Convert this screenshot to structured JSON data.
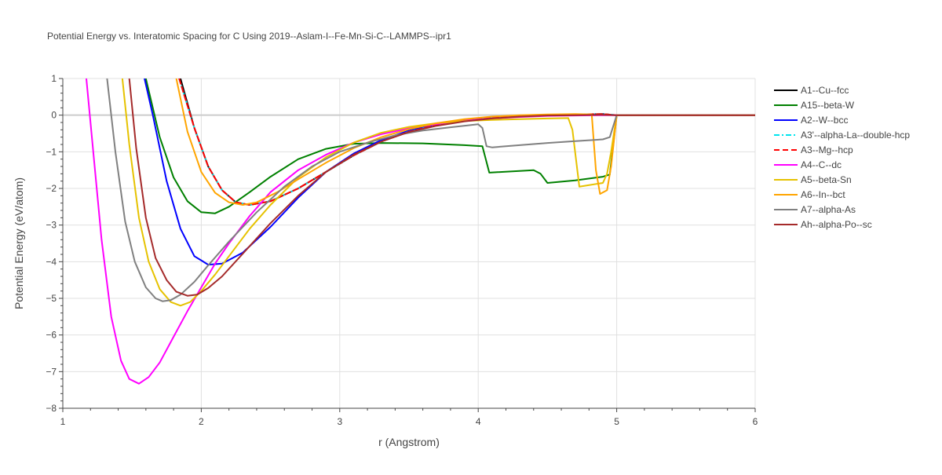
{
  "chart_data": {
    "type": "line",
    "title": "Potential Energy vs. Interatomic Spacing for C Using 2019--Aslam-I--Fe-Mn-Si-C--LAMMPS--ipr1",
    "xlabel": "r (Angstrom)",
    "ylabel": "Potential Energy (eV/atom)",
    "xlim": [
      1,
      6
    ],
    "ylim": [
      -8,
      1
    ],
    "xticks": [
      1,
      2,
      3,
      4,
      5,
      6
    ],
    "yticks": [
      1,
      0,
      -1,
      -2,
      -3,
      -4,
      -5,
      -6,
      -7,
      -8
    ],
    "grid": true,
    "legend_position": "right",
    "series": [
      {
        "name": "A1--Cu--fcc",
        "color": "#000000",
        "dash": "solid",
        "x": [
          1.85,
          1.95,
          2.05,
          2.15,
          2.25,
          2.35,
          2.5,
          2.7,
          2.9,
          3.1,
          3.3,
          3.5,
          3.7,
          3.9,
          4.1,
          4.3,
          4.5,
          4.7,
          4.9,
          5.0,
          6.0
        ],
        "y": [
          1.0,
          -0.35,
          -1.4,
          -2.05,
          -2.38,
          -2.45,
          -2.35,
          -2.0,
          -1.55,
          -1.1,
          -0.72,
          -0.45,
          -0.27,
          -0.14,
          -0.06,
          -0.02,
          0.0,
          0.02,
          0.03,
          0.0,
          0.0
        ]
      },
      {
        "name": "A15--beta-W",
        "color": "#008000",
        "dash": "solid",
        "x": [
          1.6,
          1.7,
          1.8,
          1.9,
          2.0,
          2.1,
          2.2,
          2.35,
          2.5,
          2.7,
          2.9,
          3.1,
          3.3,
          3.6,
          3.9,
          4.03,
          4.08,
          4.4,
          4.45,
          4.5,
          4.7,
          4.9,
          4.95,
          5.0,
          6.0
        ],
        "y": [
          1.0,
          -0.6,
          -1.7,
          -2.35,
          -2.65,
          -2.68,
          -2.5,
          -2.1,
          -1.68,
          -1.2,
          -0.92,
          -0.78,
          -0.76,
          -0.77,
          -0.82,
          -0.85,
          -1.57,
          -1.5,
          -1.6,
          -1.85,
          -1.78,
          -1.68,
          -1.62,
          0.0,
          0.0
        ]
      },
      {
        "name": "A2--W--bcc",
        "color": "#0000ff",
        "dash": "solid",
        "x": [
          1.59,
          1.65,
          1.75,
          1.85,
          1.95,
          2.05,
          2.15,
          2.3,
          2.5,
          2.7,
          2.9,
          3.1,
          3.3,
          3.5,
          3.7,
          3.9,
          4.1,
          4.3,
          4.5,
          4.7,
          4.9,
          5.0,
          6.0
        ],
        "y": [
          1.0,
          0.0,
          -1.8,
          -3.1,
          -3.85,
          -4.08,
          -4.05,
          -3.75,
          -3.05,
          -2.25,
          -1.55,
          -1.05,
          -0.68,
          -0.42,
          -0.25,
          -0.13,
          -0.06,
          -0.02,
          0.0,
          0.01,
          0.02,
          0.0,
          0.0
        ]
      },
      {
        "name": "A3'--alpha-La--double-hcp",
        "color": "#00e5ee",
        "dash": "dashdot",
        "x": [
          1.84,
          1.95,
          2.05,
          2.15,
          2.25,
          2.35,
          2.5,
          2.7,
          2.9,
          3.1,
          3.3,
          3.5,
          3.7,
          3.9,
          4.1,
          4.3,
          4.5,
          4.7,
          4.9,
          5.0,
          6.0
        ],
        "y": [
          1.0,
          -0.35,
          -1.4,
          -2.05,
          -2.38,
          -2.45,
          -2.35,
          -2.0,
          -1.55,
          -1.1,
          -0.72,
          -0.45,
          -0.27,
          -0.14,
          -0.06,
          -0.02,
          0.0,
          0.02,
          0.03,
          0.0,
          0.0
        ]
      },
      {
        "name": "A3--Mg--hcp",
        "color": "#ff0000",
        "dash": "dash",
        "x": [
          1.84,
          1.95,
          2.05,
          2.15,
          2.25,
          2.35,
          2.5,
          2.7,
          2.9,
          3.1,
          3.3,
          3.5,
          3.7,
          3.9,
          4.1,
          4.3,
          4.5,
          4.7,
          4.9,
          5.0,
          6.0
        ],
        "y": [
          1.0,
          -0.35,
          -1.4,
          -2.05,
          -2.38,
          -2.45,
          -2.35,
          -2.0,
          -1.55,
          -1.1,
          -0.72,
          -0.45,
          -0.27,
          -0.14,
          -0.06,
          -0.02,
          0.0,
          0.02,
          0.03,
          0.0,
          0.0
        ]
      },
      {
        "name": "A4--C--dc",
        "color": "#ff00ff",
        "dash": "solid",
        "x": [
          1.17,
          1.22,
          1.28,
          1.35,
          1.42,
          1.48,
          1.55,
          1.62,
          1.7,
          1.8,
          1.9,
          2.0,
          2.1,
          2.2,
          2.35,
          2.5,
          2.7,
          2.9,
          3.1,
          3.3,
          3.5,
          3.7,
          3.9,
          4.1,
          4.3,
          4.5,
          4.7,
          4.9,
          5.0,
          6.0
        ],
        "y": [
          1.0,
          -1.0,
          -3.4,
          -5.5,
          -6.7,
          -7.2,
          -7.33,
          -7.15,
          -6.75,
          -6.05,
          -5.35,
          -4.7,
          -4.05,
          -3.5,
          -2.75,
          -2.1,
          -1.5,
          -1.08,
          -0.75,
          -0.52,
          -0.36,
          -0.24,
          -0.15,
          -0.09,
          -0.05,
          -0.02,
          -0.01,
          0.0,
          0.0,
          0.0
        ]
      },
      {
        "name": "A5--beta-Sn",
        "color": "#e6c200",
        "dash": "solid",
        "x": [
          1.43,
          1.48,
          1.55,
          1.62,
          1.7,
          1.78,
          1.85,
          1.92,
          2.0,
          2.1,
          2.2,
          2.35,
          2.5,
          2.7,
          2.9,
          3.1,
          3.3,
          3.5,
          3.7,
          3.9,
          4.1,
          4.3,
          4.5,
          4.65,
          4.68,
          4.73,
          4.9,
          4.93,
          4.96,
          5.0,
          6.0
        ],
        "y": [
          1.0,
          -0.8,
          -2.8,
          -4.0,
          -4.75,
          -5.1,
          -5.2,
          -5.1,
          -4.8,
          -4.35,
          -3.85,
          -3.1,
          -2.45,
          -1.7,
          -1.15,
          -0.75,
          -0.48,
          -0.32,
          -0.22,
          -0.16,
          -0.13,
          -0.11,
          -0.09,
          -0.08,
          -0.4,
          -1.95,
          -1.85,
          -1.6,
          -1.0,
          0.0,
          0.0
        ]
      },
      {
        "name": "A6--In--bct",
        "color": "#ffa500",
        "dash": "solid",
        "x": [
          1.82,
          1.9,
          2.0,
          2.1,
          2.2,
          2.3,
          2.4,
          2.55,
          2.7,
          2.9,
          3.1,
          3.3,
          3.5,
          3.7,
          3.9,
          4.1,
          4.3,
          4.5,
          4.7,
          4.82,
          4.85,
          4.88,
          4.93,
          4.96,
          5.0,
          6.0
        ],
        "y": [
          1.0,
          -0.45,
          -1.55,
          -2.12,
          -2.38,
          -2.45,
          -2.38,
          -2.1,
          -1.75,
          -1.3,
          -0.9,
          -0.6,
          -0.38,
          -0.22,
          -0.11,
          -0.04,
          0.0,
          0.02,
          0.03,
          0.02,
          -1.5,
          -2.15,
          -2.05,
          -1.4,
          0.0,
          0.0
        ]
      },
      {
        "name": "A7--alpha-As",
        "color": "#808080",
        "dash": "solid",
        "x": [
          1.32,
          1.38,
          1.45,
          1.52,
          1.6,
          1.67,
          1.72,
          1.78,
          1.85,
          1.95,
          2.05,
          2.2,
          2.4,
          2.6,
          2.8,
          3.0,
          3.2,
          3.4,
          3.6,
          3.8,
          4.0,
          4.03,
          4.06,
          4.1,
          4.3,
          4.5,
          4.7,
          4.9,
          4.95,
          5.0,
          6.0
        ],
        "y": [
          1.0,
          -1.0,
          -2.9,
          -4.0,
          -4.7,
          -5.0,
          -5.08,
          -5.05,
          -4.9,
          -4.55,
          -4.1,
          -3.45,
          -2.65,
          -1.95,
          -1.4,
          -1.0,
          -0.75,
          -0.55,
          -0.42,
          -0.33,
          -0.25,
          -0.35,
          -0.85,
          -0.88,
          -0.82,
          -0.76,
          -0.71,
          -0.66,
          -0.6,
          0.0,
          0.0
        ]
      },
      {
        "name": "Ah--alpha-Po--sc",
        "color": "#a52a2a",
        "dash": "solid",
        "x": [
          1.48,
          1.53,
          1.6,
          1.67,
          1.75,
          1.82,
          1.9,
          1.97,
          2.05,
          2.15,
          2.3,
          2.5,
          2.7,
          2.9,
          3.1,
          3.3,
          3.5,
          3.7,
          3.9,
          4.1,
          4.3,
          4.5,
          4.7,
          4.9,
          5.0,
          6.0
        ],
        "y": [
          1.0,
          -0.9,
          -2.8,
          -3.9,
          -4.5,
          -4.82,
          -4.93,
          -4.9,
          -4.72,
          -4.4,
          -3.78,
          -2.95,
          -2.2,
          -1.55,
          -1.08,
          -0.72,
          -0.46,
          -0.29,
          -0.17,
          -0.09,
          -0.04,
          -0.01,
          0.0,
          0.01,
          0.0,
          0.0
        ]
      }
    ]
  }
}
